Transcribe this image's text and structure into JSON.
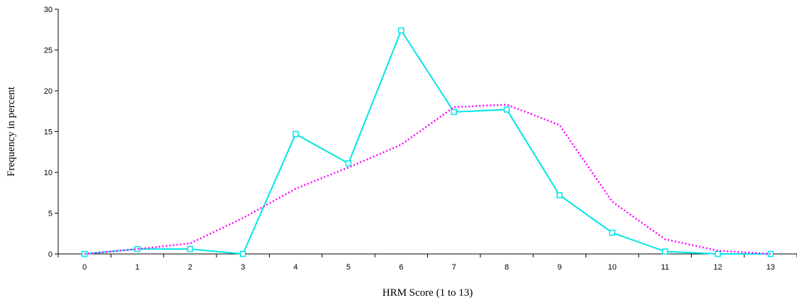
{
  "chart_data": {
    "type": "line",
    "xlabel": "HRM Score (1 to 13)",
    "ylabel": "Frequency in percent",
    "ylim": [
      0,
      30
    ],
    "yticks": [
      0,
      5,
      10,
      15,
      20,
      25,
      30
    ],
    "categories": [
      "0",
      "1",
      "2",
      "3",
      "4",
      "5",
      "6",
      "7",
      "8",
      "9",
      "10",
      "11",
      "12",
      "13"
    ],
    "grid": false,
    "legend": "none",
    "series": [
      {
        "style": "solid-with-square-markers",
        "color": "#00e5e5",
        "values": [
          0,
          0.6,
          0.6,
          0,
          14.7,
          11.1,
          27.4,
          17.4,
          17.7,
          7.2,
          2.6,
          0.3,
          0,
          0
        ]
      },
      {
        "style": "dotted",
        "color": "#ff00ff",
        "values": [
          0,
          0.6,
          1.3,
          4.4,
          8.0,
          10.6,
          13.4,
          18.0,
          18.3,
          15.8,
          6.4,
          1.8,
          0.4,
          0
        ]
      }
    ]
  }
}
